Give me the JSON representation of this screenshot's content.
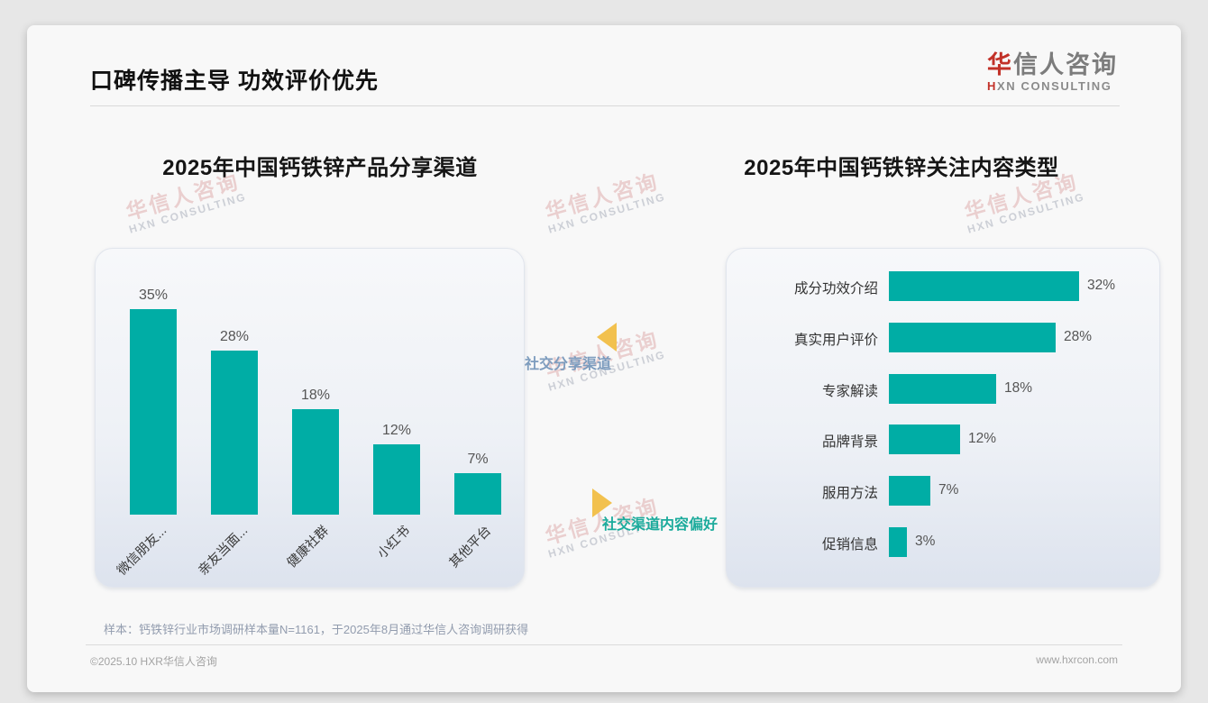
{
  "header": {
    "title": "口碑传播主导 功效评价优先",
    "logo": {
      "cn_accent": "华",
      "cn_rest": "信人咨询",
      "en_accent": "H",
      "en_rest": "XN CONSULTING"
    }
  },
  "watermark": {
    "cn": "华信人咨询",
    "en": "HXN CONSULTING"
  },
  "chart_data": [
    {
      "type": "bar",
      "orientation": "vertical",
      "title": "2025年中国钙铁锌产品分享渠道",
      "categories": [
        "微信朋友...",
        "亲友当面...",
        "健康社群",
        "小红书",
        "其他平台"
      ],
      "values": [
        35,
        28,
        18,
        12,
        7
      ],
      "data_labels": [
        "35%",
        "28%",
        "18%",
        "12%",
        "7%"
      ],
      "unit": "%",
      "ylim": [
        0,
        38
      ],
      "bar_color": "#00ada5",
      "grid": false,
      "legend": "none"
    },
    {
      "type": "bar",
      "orientation": "horizontal",
      "title": "2025年中国钙铁锌关注内容类型",
      "categories": [
        "成分功效介绍",
        "真实用户评价",
        "专家解读",
        "品牌背景",
        "服用方法",
        "促销信息"
      ],
      "values": [
        32,
        28,
        18,
        12,
        7,
        3
      ],
      "data_labels": [
        "32%",
        "28%",
        "18%",
        "12%",
        "7%",
        "3%"
      ],
      "unit": "%",
      "xlim": [
        0,
        35
      ],
      "bar_color": "#00ada5",
      "grid": false,
      "legend": "none"
    }
  ],
  "annotations": {
    "top_label": "社交分享渠道",
    "bottom_label": "社交渠道内容偏好"
  },
  "footer": {
    "sample_note": "样本：钙铁锌行业市场调研样本量N=1161，于2025年8月通过华信人咨询调研获得",
    "copyright": "©2025.10 HXR华信人咨询",
    "website": "www.hxrcon.com"
  },
  "colors": {
    "bar_teal": "#00ada5",
    "arrow_yellow": "#f2c14e",
    "annotation_blue": "#7d9cbe",
    "annotation_teal": "#1cab9c",
    "logo_red": "#c23128"
  }
}
